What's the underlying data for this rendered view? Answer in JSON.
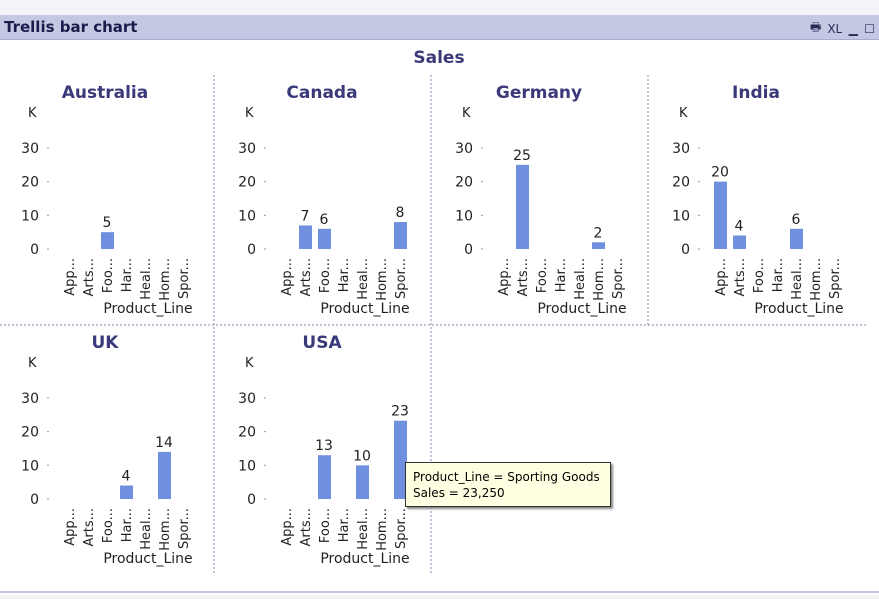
{
  "window": {
    "title": "Trellis bar chart",
    "icons": [
      {
        "name": "print-icon",
        "glyph": "🖶"
      },
      {
        "name": "xl-icon",
        "glyph": "XL"
      },
      {
        "name": "minimize-icon",
        "glyph": "▁"
      },
      {
        "name": "maximize-icon",
        "glyph": "☐"
      }
    ]
  },
  "tooltip": {
    "line1": "Product_Line = Sporting Goods",
    "line2": "Sales = 23,250"
  },
  "chart_data": {
    "type": "bar",
    "title": "Sales",
    "xlabel": "Product_Line",
    "unit_label": "K",
    "ylim": [
      0,
      30
    ],
    "yticks": [
      0,
      10,
      20,
      30
    ],
    "categories": [
      "App...",
      "Arts...",
      "Foo...",
      "Har...",
      "Heal...",
      "Hom...",
      "Spor..."
    ],
    "bar_color": "#6f8fdf",
    "title_color": "#3a3a7a",
    "panels": [
      {
        "name": "Australia",
        "values": [
          null,
          null,
          5,
          null,
          null,
          null,
          null
        ]
      },
      {
        "name": "Canada",
        "values": [
          null,
          7,
          6,
          null,
          null,
          null,
          8
        ]
      },
      {
        "name": "Germany",
        "values": [
          null,
          25,
          null,
          null,
          null,
          2,
          null
        ]
      },
      {
        "name": "India",
        "values": [
          20,
          4,
          null,
          null,
          6,
          null,
          null
        ]
      },
      {
        "name": "UK",
        "values": [
          null,
          null,
          null,
          4,
          null,
          14,
          null
        ]
      },
      {
        "name": "USA",
        "values": [
          null,
          null,
          13,
          null,
          10,
          null,
          23.25
        ]
      }
    ]
  }
}
